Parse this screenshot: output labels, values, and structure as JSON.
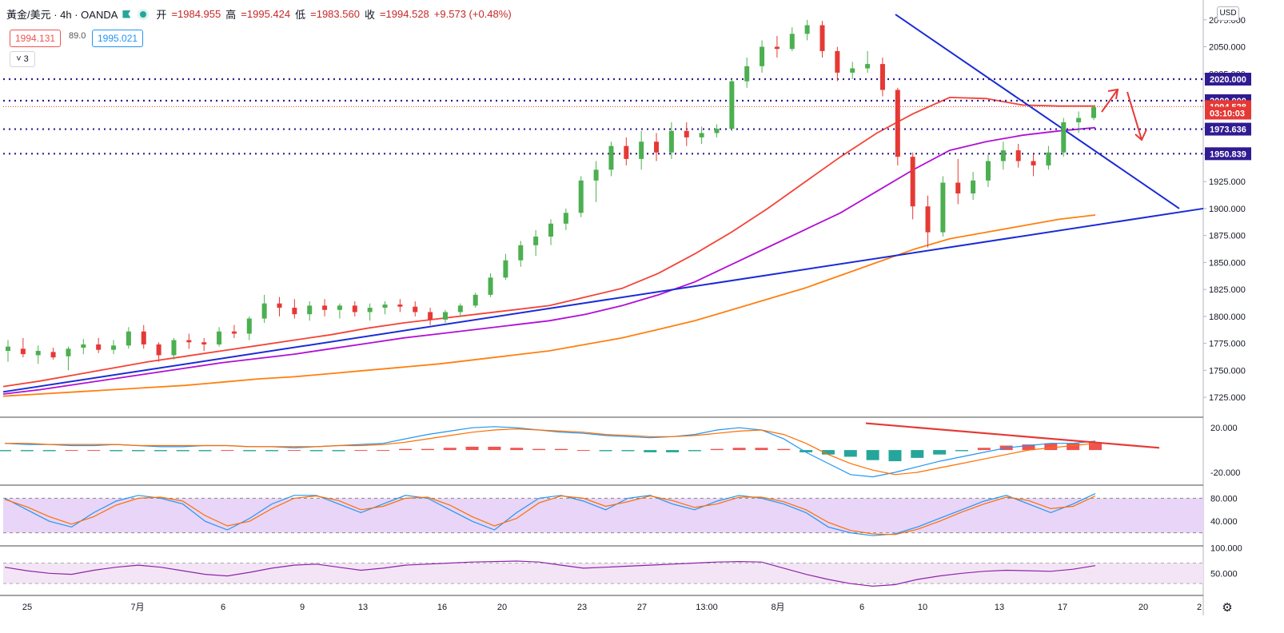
{
  "header": {
    "symbol": "黃金/美元 · 4h · OANDA",
    "open_label": "开",
    "open": "=1984.955",
    "high_label": "高",
    "high": "=1995.424",
    "low_label": "低",
    "low": "=1983.560",
    "close_label": "收",
    "close": "=1994.528",
    "change": "+9.573 (+0.48%)",
    "sell_price": "1994.131",
    "spread": "89.0",
    "buy_price": "1995.021",
    "collapse_label": "3"
  },
  "currency": "USD",
  "colors": {
    "up": "#4caf50",
    "down": "#e53935",
    "ma_red": "#f44336",
    "ma_purple": "#b10fd6",
    "ma_orange": "#ff7f0e",
    "trend": "#1a2bd6",
    "levels": "#311b92",
    "annotation": "#e53935"
  },
  "chart_data": {
    "type": "candlestick",
    "y_axis": {
      "ticks": [
        "2075.000",
        "2050.000",
        "2025.000",
        "2000.000",
        "1975.000",
        "1950.000",
        "1925.000",
        "1900.000",
        "1875.000",
        "1850.000",
        "1825.000",
        "1800.000",
        "1775.000",
        "1750.000",
        "1725.000"
      ],
      "range": [
        1708,
        2083
      ]
    },
    "x_axis": {
      "labels": [
        "25",
        "7月",
        "6",
        "9",
        "13",
        "16",
        "20",
        "23",
        "27",
        "13:00",
        "8月",
        "6",
        "10",
        "13",
        "17",
        "20",
        "2"
      ]
    },
    "candles": [
      {
        "o": 1768,
        "h": 1778,
        "l": 1758,
        "c": 1772
      },
      {
        "o": 1770,
        "h": 1780,
        "l": 1762,
        "c": 1765
      },
      {
        "o": 1764,
        "h": 1773,
        "l": 1756,
        "c": 1768
      },
      {
        "o": 1767,
        "h": 1771,
        "l": 1760,
        "c": 1762
      },
      {
        "o": 1763,
        "h": 1772,
        "l": 1750,
        "c": 1770
      },
      {
        "o": 1771,
        "h": 1779,
        "l": 1765,
        "c": 1774
      },
      {
        "o": 1774,
        "h": 1780,
        "l": 1766,
        "c": 1769
      },
      {
        "o": 1769,
        "h": 1778,
        "l": 1765,
        "c": 1773
      },
      {
        "o": 1773,
        "h": 1790,
        "l": 1770,
        "c": 1786
      },
      {
        "o": 1786,
        "h": 1792,
        "l": 1770,
        "c": 1774
      },
      {
        "o": 1774,
        "h": 1776,
        "l": 1758,
        "c": 1764
      },
      {
        "o": 1764,
        "h": 1780,
        "l": 1760,
        "c": 1778
      },
      {
        "o": 1778,
        "h": 1784,
        "l": 1770,
        "c": 1776
      },
      {
        "o": 1776,
        "h": 1780,
        "l": 1768,
        "c": 1774
      },
      {
        "o": 1774,
        "h": 1790,
        "l": 1772,
        "c": 1786
      },
      {
        "o": 1786,
        "h": 1792,
        "l": 1780,
        "c": 1784
      },
      {
        "o": 1784,
        "h": 1800,
        "l": 1778,
        "c": 1798
      },
      {
        "o": 1798,
        "h": 1820,
        "l": 1794,
        "c": 1812
      },
      {
        "o": 1812,
        "h": 1818,
        "l": 1800,
        "c": 1808
      },
      {
        "o": 1808,
        "h": 1816,
        "l": 1798,
        "c": 1802
      },
      {
        "o": 1802,
        "h": 1814,
        "l": 1796,
        "c": 1810
      },
      {
        "o": 1810,
        "h": 1816,
        "l": 1800,
        "c": 1806
      },
      {
        "o": 1806,
        "h": 1812,
        "l": 1798,
        "c": 1810
      },
      {
        "o": 1810,
        "h": 1814,
        "l": 1800,
        "c": 1804
      },
      {
        "o": 1804,
        "h": 1812,
        "l": 1796,
        "c": 1808
      },
      {
        "o": 1808,
        "h": 1814,
        "l": 1802,
        "c": 1811
      },
      {
        "o": 1811,
        "h": 1816,
        "l": 1804,
        "c": 1809
      },
      {
        "o": 1809,
        "h": 1814,
        "l": 1800,
        "c": 1804
      },
      {
        "o": 1804,
        "h": 1808,
        "l": 1792,
        "c": 1797
      },
      {
        "o": 1797,
        "h": 1806,
        "l": 1794,
        "c": 1804
      },
      {
        "o": 1804,
        "h": 1812,
        "l": 1800,
        "c": 1810
      },
      {
        "o": 1810,
        "h": 1822,
        "l": 1808,
        "c": 1820
      },
      {
        "o": 1820,
        "h": 1840,
        "l": 1818,
        "c": 1836
      },
      {
        "o": 1836,
        "h": 1858,
        "l": 1834,
        "c": 1852
      },
      {
        "o": 1852,
        "h": 1870,
        "l": 1846,
        "c": 1866
      },
      {
        "o": 1866,
        "h": 1880,
        "l": 1856,
        "c": 1874
      },
      {
        "o": 1874,
        "h": 1890,
        "l": 1866,
        "c": 1886
      },
      {
        "o": 1886,
        "h": 1900,
        "l": 1880,
        "c": 1896
      },
      {
        "o": 1896,
        "h": 1930,
        "l": 1892,
        "c": 1926
      },
      {
        "o": 1926,
        "h": 1944,
        "l": 1906,
        "c": 1936
      },
      {
        "o": 1936,
        "h": 1962,
        "l": 1930,
        "c": 1958
      },
      {
        "o": 1958,
        "h": 1966,
        "l": 1940,
        "c": 1946
      },
      {
        "o": 1946,
        "h": 1972,
        "l": 1936,
        "c": 1962
      },
      {
        "o": 1962,
        "h": 1970,
        "l": 1944,
        "c": 1952
      },
      {
        "o": 1952,
        "h": 1980,
        "l": 1946,
        "c": 1972
      },
      {
        "o": 1972,
        "h": 1980,
        "l": 1958,
        "c": 1966
      },
      {
        "o": 1966,
        "h": 1976,
        "l": 1960,
        "c": 1970
      },
      {
        "o": 1970,
        "h": 1978,
        "l": 1966,
        "c": 1974
      },
      {
        "o": 1974,
        "h": 2020,
        "l": 1972,
        "c": 2018
      },
      {
        "o": 2018,
        "h": 2040,
        "l": 2012,
        "c": 2032
      },
      {
        "o": 2032,
        "h": 2056,
        "l": 2026,
        "c": 2050
      },
      {
        "o": 2050,
        "h": 2060,
        "l": 2040,
        "c": 2048
      },
      {
        "o": 2048,
        "h": 2068,
        "l": 2046,
        "c": 2062
      },
      {
        "o": 2062,
        "h": 2075,
        "l": 2056,
        "c": 2070
      },
      {
        "o": 2070,
        "h": 2074,
        "l": 2040,
        "c": 2046
      },
      {
        "o": 2046,
        "h": 2050,
        "l": 2018,
        "c": 2026
      },
      {
        "o": 2026,
        "h": 2036,
        "l": 2020,
        "c": 2030
      },
      {
        "o": 2030,
        "h": 2046,
        "l": 2026,
        "c": 2034
      },
      {
        "o": 2034,
        "h": 2040,
        "l": 2004,
        "c": 2010
      },
      {
        "o": 2010,
        "h": 2012,
        "l": 1940,
        "c": 1948
      },
      {
        "o": 1948,
        "h": 1952,
        "l": 1890,
        "c": 1902
      },
      {
        "o": 1902,
        "h": 1912,
        "l": 1864,
        "c": 1878
      },
      {
        "o": 1878,
        "h": 1930,
        "l": 1874,
        "c": 1924
      },
      {
        "o": 1924,
        "h": 1946,
        "l": 1904,
        "c": 1914
      },
      {
        "o": 1914,
        "h": 1934,
        "l": 1908,
        "c": 1926
      },
      {
        "o": 1926,
        "h": 1950,
        "l": 1920,
        "c": 1944
      },
      {
        "o": 1944,
        "h": 1962,
        "l": 1936,
        "c": 1954
      },
      {
        "o": 1954,
        "h": 1960,
        "l": 1938,
        "c": 1944
      },
      {
        "o": 1944,
        "h": 1950,
        "l": 1930,
        "c": 1940
      },
      {
        "o": 1940,
        "h": 1958,
        "l": 1936,
        "c": 1952
      },
      {
        "o": 1952,
        "h": 1984,
        "l": 1948,
        "c": 1980
      },
      {
        "o": 1980,
        "h": 1990,
        "l": 1970,
        "c": 1984
      },
      {
        "o": 1984,
        "h": 1996,
        "l": 1982,
        "c": 1994
      }
    ],
    "moving_averages": [
      {
        "color": "#f44336",
        "points": [
          1735,
          1740,
          1746,
          1752,
          1758,
          1763,
          1768,
          1773,
          1778,
          1783,
          1789,
          1794,
          1798,
          1802,
          1806,
          1810,
          1818,
          1826,
          1840,
          1858,
          1878,
          1900,
          1924,
          1948,
          1970,
          1988,
          2003,
          2002,
          1996,
          1995,
          1995
        ]
      },
      {
        "color": "#b10fd6",
        "points": [
          1728,
          1732,
          1737,
          1742,
          1747,
          1752,
          1757,
          1761,
          1765,
          1770,
          1775,
          1780,
          1784,
          1788,
          1792,
          1796,
          1802,
          1810,
          1820,
          1832,
          1848,
          1864,
          1880,
          1896,
          1916,
          1936,
          1954,
          1962,
          1968,
          1972,
          1975
        ]
      },
      {
        "color": "#ff7f0e",
        "points": [
          1726,
          1728,
          1730,
          1732,
          1734,
          1736,
          1739,
          1742,
          1744,
          1747,
          1750,
          1753,
          1756,
          1760,
          1764,
          1768,
          1774,
          1780,
          1788,
          1796,
          1806,
          1816,
          1826,
          1838,
          1850,
          1862,
          1872,
          1878,
          1884,
          1890,
          1894
        ]
      }
    ],
    "horizontal_levels": [
      2020.0,
      2000.0,
      1973.636,
      1950.839
    ],
    "price_labels": [
      {
        "text": "2020.000",
        "value": 2020,
        "bg": "#311b92"
      },
      {
        "text": "2000.000",
        "value": 2000,
        "bg": "#311b92"
      },
      {
        "text": "1994.528",
        "value": 1994.528,
        "bg": "#e53935"
      },
      {
        "text": "03:10:03",
        "value": 1988.5,
        "bg": "#e53935"
      },
      {
        "text": "1973.636",
        "value": 1973.636,
        "bg": "#311b92"
      },
      {
        "text": "1950.839",
        "value": 1950.839,
        "bg": "#311b92"
      }
    ],
    "macd": {
      "ticks": [
        "20.000",
        "-20.000"
      ],
      "histogram": [
        -1,
        -1,
        -1,
        0,
        0,
        -1,
        -1,
        -1,
        -1,
        -1,
        0,
        -1,
        -1,
        0,
        -1,
        -1,
        0,
        0,
        1,
        1,
        2,
        3,
        3,
        2,
        1,
        1,
        0,
        -1,
        -1,
        -2,
        -2,
        -1,
        1,
        2,
        2,
        1,
        -2,
        -4,
        -6,
        -9,
        -10,
        -7,
        -4,
        -1,
        2,
        4,
        5,
        6,
        6,
        7
      ],
      "macd_line": [
        6,
        5,
        5,
        4,
        4,
        5,
        4,
        3,
        3,
        4,
        4,
        3,
        3,
        2,
        3,
        4,
        5,
        6,
        10,
        14,
        17,
        20,
        21,
        20,
        18,
        16,
        15,
        13,
        12,
        11,
        12,
        14,
        18,
        20,
        18,
        10,
        -2,
        -12,
        -22,
        -24,
        -20,
        -15,
        -10,
        -6,
        -2,
        2,
        4,
        6,
        6,
        8
      ],
      "signal_line": [
        6,
        6,
        5,
        5,
        5,
        5,
        4,
        4,
        4,
        4,
        4,
        3,
        3,
        3,
        3,
        4,
        4,
        5,
        7,
        10,
        13,
        16,
        18,
        19,
        18,
        17,
        16,
        14,
        13,
        12,
        12,
        13,
        15,
        17,
        18,
        14,
        6,
        -4,
        -12,
        -18,
        -22,
        -20,
        -16,
        -12,
        -8,
        -4,
        0,
        2,
        4,
        6
      ]
    },
    "stochastic": {
      "ticks": [
        "80.000",
        "40.000"
      ],
      "k_line": [
        80,
        60,
        40,
        30,
        55,
        75,
        85,
        80,
        70,
        40,
        25,
        45,
        70,
        85,
        85,
        70,
        55,
        70,
        85,
        80,
        60,
        40,
        25,
        55,
        80,
        85,
        75,
        60,
        80,
        85,
        70,
        60,
        75,
        85,
        80,
        70,
        55,
        30,
        20,
        15,
        18,
        30,
        45,
        60,
        75,
        85,
        70,
        55,
        70,
        88
      ],
      "d_line": [
        78,
        65,
        48,
        35,
        48,
        68,
        80,
        82,
        75,
        50,
        32,
        40,
        62,
        80,
        84,
        76,
        60,
        66,
        80,
        82,
        68,
        48,
        32,
        45,
        72,
        84,
        80,
        66,
        74,
        84,
        76,
        64,
        70,
        82,
        82,
        74,
        60,
        38,
        24,
        18,
        17,
        26,
        40,
        56,
        70,
        82,
        76,
        62,
        66,
        84
      ]
    },
    "rsi": {
      "ticks": [
        "100.000",
        "50.000"
      ],
      "line": [
        62,
        55,
        50,
        48,
        56,
        62,
        66,
        62,
        55,
        48,
        45,
        52,
        60,
        66,
        68,
        62,
        56,
        60,
        66,
        68,
        70,
        72,
        73,
        74,
        72,
        66,
        60,
        62,
        64,
        66,
        68,
        70,
        72,
        73,
        72,
        60,
        48,
        38,
        30,
        25,
        28,
        38,
        45,
        50,
        54,
        56,
        55,
        54,
        58,
        65
      ]
    },
    "annotations": [
      {
        "text": "↗",
        "kind": "arrow-up"
      },
      {
        "text": "↘",
        "kind": "arrow-down"
      }
    ]
  }
}
